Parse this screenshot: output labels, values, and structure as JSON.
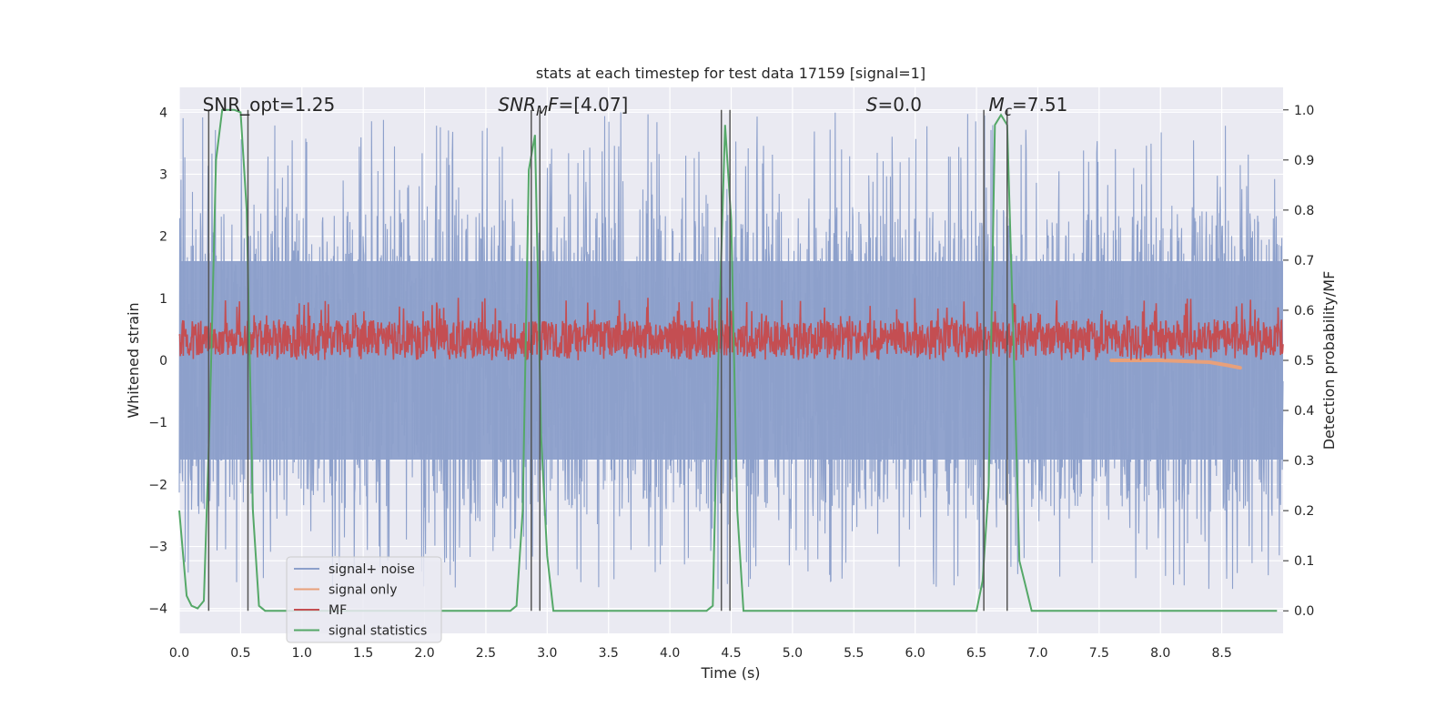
{
  "chart_data": {
    "type": "line",
    "title": "stats at each timestep for test data 17159 [signal=1]",
    "xlabel": "Time (s)",
    "ylabel": "Whitened strain",
    "y2label": "Detection probability/MF",
    "xlim": [
      0.0,
      9.0
    ],
    "ylim": [
      -4.4,
      4.4
    ],
    "y2lim": [
      -0.045,
      1.045
    ],
    "xticks": [
      "0.0",
      "0.5",
      "1.0",
      "1.5",
      "2.0",
      "2.5",
      "3.0",
      "3.5",
      "4.0",
      "4.5",
      "5.0",
      "5.5",
      "6.0",
      "6.5",
      "7.0",
      "7.5",
      "8.0",
      "8.5"
    ],
    "yticks": [
      "−4",
      "−3",
      "−2",
      "−1",
      "0",
      "1",
      "2",
      "3",
      "4"
    ],
    "y2ticks": [
      "0.0",
      "0.1",
      "0.2",
      "0.3",
      "0.4",
      "0.5",
      "0.6",
      "0.7",
      "0.8",
      "0.9",
      "1.0"
    ],
    "grid": true,
    "legend_position": "lower-left",
    "annotations": [
      {
        "id": "snr_opt",
        "parts": [
          {
            "t": "SNR_opt=1.25",
            "i": false
          }
        ],
        "x": 0.19
      },
      {
        "id": "snr_mf",
        "parts": [
          {
            "t": "SNR",
            "i": true
          },
          {
            "t": "M",
            "i": true,
            "sub": true
          },
          {
            "t": "F",
            "i": true
          },
          {
            "t": "=[4.07]",
            "i": false
          }
        ],
        "x": 2.6
      },
      {
        "id": "s",
        "parts": [
          {
            "t": "S",
            "i": true
          },
          {
            "t": "=0.0",
            "i": false
          }
        ],
        "x": 5.6
      },
      {
        "id": "mc",
        "parts": [
          {
            "t": "M",
            "i": true
          },
          {
            "t": "c",
            "i": true,
            "sub": true
          },
          {
            "t": "=7.51",
            "i": false
          }
        ],
        "x": 6.6
      }
    ],
    "series": [
      {
        "name": "signal+ noise",
        "color": "#8da0cb",
        "axis": "left",
        "kind": "noise",
        "band": [
          -1.6,
          1.6
        ],
        "peak": [
          -3.7,
          4.0
        ]
      },
      {
        "name": "signal only",
        "color": "#e8a07a",
        "axis": "left",
        "kind": "chirp",
        "x": [
          7.6,
          8.0,
          8.4,
          8.55,
          8.65
        ],
        "y": [
          0.0,
          0.0,
          -0.03,
          -0.08,
          -0.12
        ]
      },
      {
        "name": "MF",
        "color": "#c44e52",
        "axis": "right",
        "kind": "noise",
        "band": [
          0.51,
          0.58
        ],
        "peak": [
          0.5,
          0.625
        ]
      },
      {
        "name": "signal statistics",
        "color": "#55a868",
        "axis": "right",
        "kind": "line",
        "x": [
          0.0,
          0.06,
          0.1,
          0.15,
          0.2,
          0.25,
          0.3,
          0.35,
          0.4,
          0.45,
          0.5,
          0.55,
          0.6,
          0.65,
          0.7,
          0.75,
          0.8,
          0.9,
          1.0,
          1.5,
          2.0,
          2.5,
          2.7,
          2.75,
          2.8,
          2.85,
          2.9,
          2.95,
          3.0,
          3.05,
          3.1,
          3.5,
          4.0,
          4.3,
          4.35,
          4.4,
          4.45,
          4.5,
          4.55,
          4.6,
          4.65,
          4.7,
          5.0,
          5.5,
          6.0,
          6.4,
          6.5,
          6.55,
          6.6,
          6.65,
          6.7,
          6.75,
          6.8,
          6.85,
          6.9,
          6.95,
          7.0,
          7.5,
          8.0,
          8.5,
          8.95
        ],
        "y": [
          0.2,
          0.03,
          0.01,
          0.005,
          0.02,
          0.4,
          0.9,
          1.0,
          1.0,
          1.0,
          0.995,
          0.8,
          0.2,
          0.01,
          0.0,
          0.0,
          0.0,
          0.0,
          0.0,
          0.0,
          0.0,
          0.0,
          0.0,
          0.01,
          0.2,
          0.88,
          0.95,
          0.35,
          0.11,
          0.0,
          0.0,
          0.0,
          0.0,
          0.0,
          0.01,
          0.55,
          0.97,
          0.78,
          0.2,
          0.0,
          0.0,
          0.0,
          0.0,
          0.0,
          0.0,
          0.0,
          0.0,
          0.06,
          0.25,
          0.97,
          0.99,
          0.97,
          0.55,
          0.1,
          0.05,
          0.0,
          0.0,
          0.0,
          0.0,
          0.0,
          0.0
        ]
      }
    ],
    "vlines": [
      0.24,
      0.56,
      2.87,
      2.94,
      4.42,
      4.49,
      6.56,
      6.75
    ]
  }
}
